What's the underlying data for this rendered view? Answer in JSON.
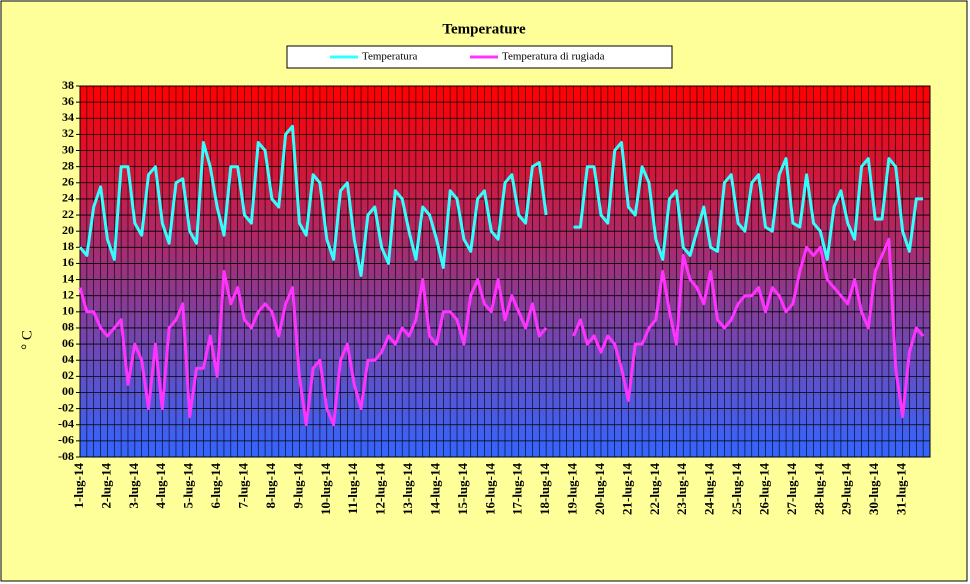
{
  "chart_data": {
    "type": "line",
    "title": "Temperature",
    "y_label": "° C",
    "legend": "top",
    "grid": true,
    "background": [
      "#ff0000",
      "#3366ff"
    ],
    "categories": [
      "1-lug-14",
      null,
      null,
      null,
      "2-lug-14",
      null,
      null,
      null,
      "3-lug-14",
      null,
      null,
      null,
      "4-lug-14",
      null,
      null,
      null,
      "5-lug-14",
      null,
      null,
      null,
      "6-lug-14",
      null,
      null,
      null,
      "7-lug-14",
      null,
      null,
      null,
      "8-lug-14",
      null,
      null,
      null,
      "9-lug-14",
      null,
      null,
      null,
      "10-lug-14",
      null,
      null,
      null,
      "11-lug-14",
      null,
      null,
      null,
      "12-lug-14",
      null,
      null,
      null,
      "13-lug-14",
      null,
      null,
      null,
      "14-lug-14",
      null,
      null,
      null,
      "15-lug-14",
      null,
      null,
      null,
      "16-lug-14",
      null,
      null,
      null,
      "17-lug-14",
      null,
      null,
      null,
      "18-lug-14",
      null,
      null,
      null,
      "19-lug-14",
      null,
      null,
      null,
      "20-lug-14",
      null,
      null,
      null,
      "21-lug-14",
      null,
      null,
      null,
      "22-lug-14",
      null,
      null,
      null,
      "23-lug-14",
      null,
      null,
      null,
      "24-lug-14",
      null,
      null,
      null,
      "25-lug-14",
      null,
      null,
      null,
      "26-lug-14",
      null,
      null,
      null,
      "27-lug-14",
      null,
      null,
      null,
      "28-lug-14",
      null,
      null,
      null,
      "29-lug-14",
      null,
      null,
      null,
      "30-lug-14",
      null,
      null,
      null,
      "31-lug-14",
      null,
      null,
      null
    ],
    "series": [
      {
        "name": "Temperatura",
        "color": "#33ffff",
        "values": [
          18,
          17,
          23,
          25.5,
          19,
          16.5,
          28,
          28,
          21,
          19.5,
          27,
          28,
          21,
          18.5,
          26,
          26.5,
          20,
          18.5,
          31,
          28,
          23,
          19.5,
          28,
          28,
          22,
          21,
          31,
          30,
          24,
          23,
          32,
          33,
          21,
          19.5,
          27,
          26,
          19,
          16.5,
          25,
          26,
          19,
          14.5,
          22,
          23,
          18,
          16,
          25,
          24,
          20,
          16.5,
          23,
          22,
          19,
          15.5,
          25,
          24,
          19,
          17.5,
          24,
          25,
          20,
          19,
          26,
          27,
          22,
          21,
          28,
          28.5,
          22,
          null,
          null,
          null,
          20.5,
          20.5,
          28,
          28,
          22,
          21,
          30,
          31,
          23,
          22,
          28,
          26,
          19,
          16.5,
          24,
          25,
          18,
          17,
          20,
          23,
          18,
          17.5,
          26,
          27,
          21,
          20,
          26,
          27,
          20.5,
          20,
          27,
          29,
          21,
          20.5,
          27,
          21,
          20,
          16.5,
          23,
          25,
          21,
          19,
          28,
          29,
          21.5,
          21.5,
          29,
          28,
          20,
          17.5,
          24,
          24
        ]
      },
      {
        "name": "Temperatura di rugiada",
        "color": "#ff33ff",
        "values": [
          13,
          10,
          10,
          8,
          7,
          8,
          9,
          1,
          6,
          4,
          -2,
          6,
          -2,
          8,
          9,
          11,
          -3,
          3,
          3,
          7,
          2,
          15,
          11,
          13,
          9,
          8,
          10,
          11,
          10,
          7,
          11,
          13,
          2,
          -4,
          3,
          4,
          -2,
          -4,
          4,
          6,
          1,
          -2,
          4,
          4,
          5,
          7,
          6,
          8,
          7,
          9,
          14,
          7,
          6,
          10,
          10,
          9,
          6,
          12,
          14,
          11,
          10,
          14,
          9,
          12,
          10,
          8,
          11,
          7,
          8,
          null,
          null,
          null,
          7,
          9,
          6,
          7,
          5,
          7,
          6,
          3,
          -1,
          6,
          6,
          8,
          9,
          15,
          10,
          6,
          17,
          14,
          13,
          11,
          15,
          9,
          8,
          9,
          11,
          12,
          12,
          13,
          10,
          13,
          12,
          10,
          11,
          15,
          18,
          17,
          18,
          14,
          13,
          12,
          11,
          14,
          10,
          8,
          15,
          17,
          19,
          3,
          -3,
          5,
          8,
          7
        ]
      }
    ],
    "ylim": [
      -8,
      38
    ],
    "yticks": [
      {
        "value": -8,
        "label": "-08"
      },
      {
        "value": -6,
        "label": "-06"
      },
      {
        "value": -4,
        "label": "-04"
      },
      {
        "value": -2,
        "label": "-02"
      },
      {
        "value": 0,
        "label": "00"
      },
      {
        "value": 2,
        "label": "02"
      },
      {
        "value": 4,
        "label": "04"
      },
      {
        "value": 6,
        "label": "06"
      },
      {
        "value": 8,
        "label": "08"
      },
      10,
      12,
      14,
      16,
      18,
      20,
      22,
      24,
      26,
      28,
      30,
      32,
      34,
      36,
      38
    ]
  }
}
